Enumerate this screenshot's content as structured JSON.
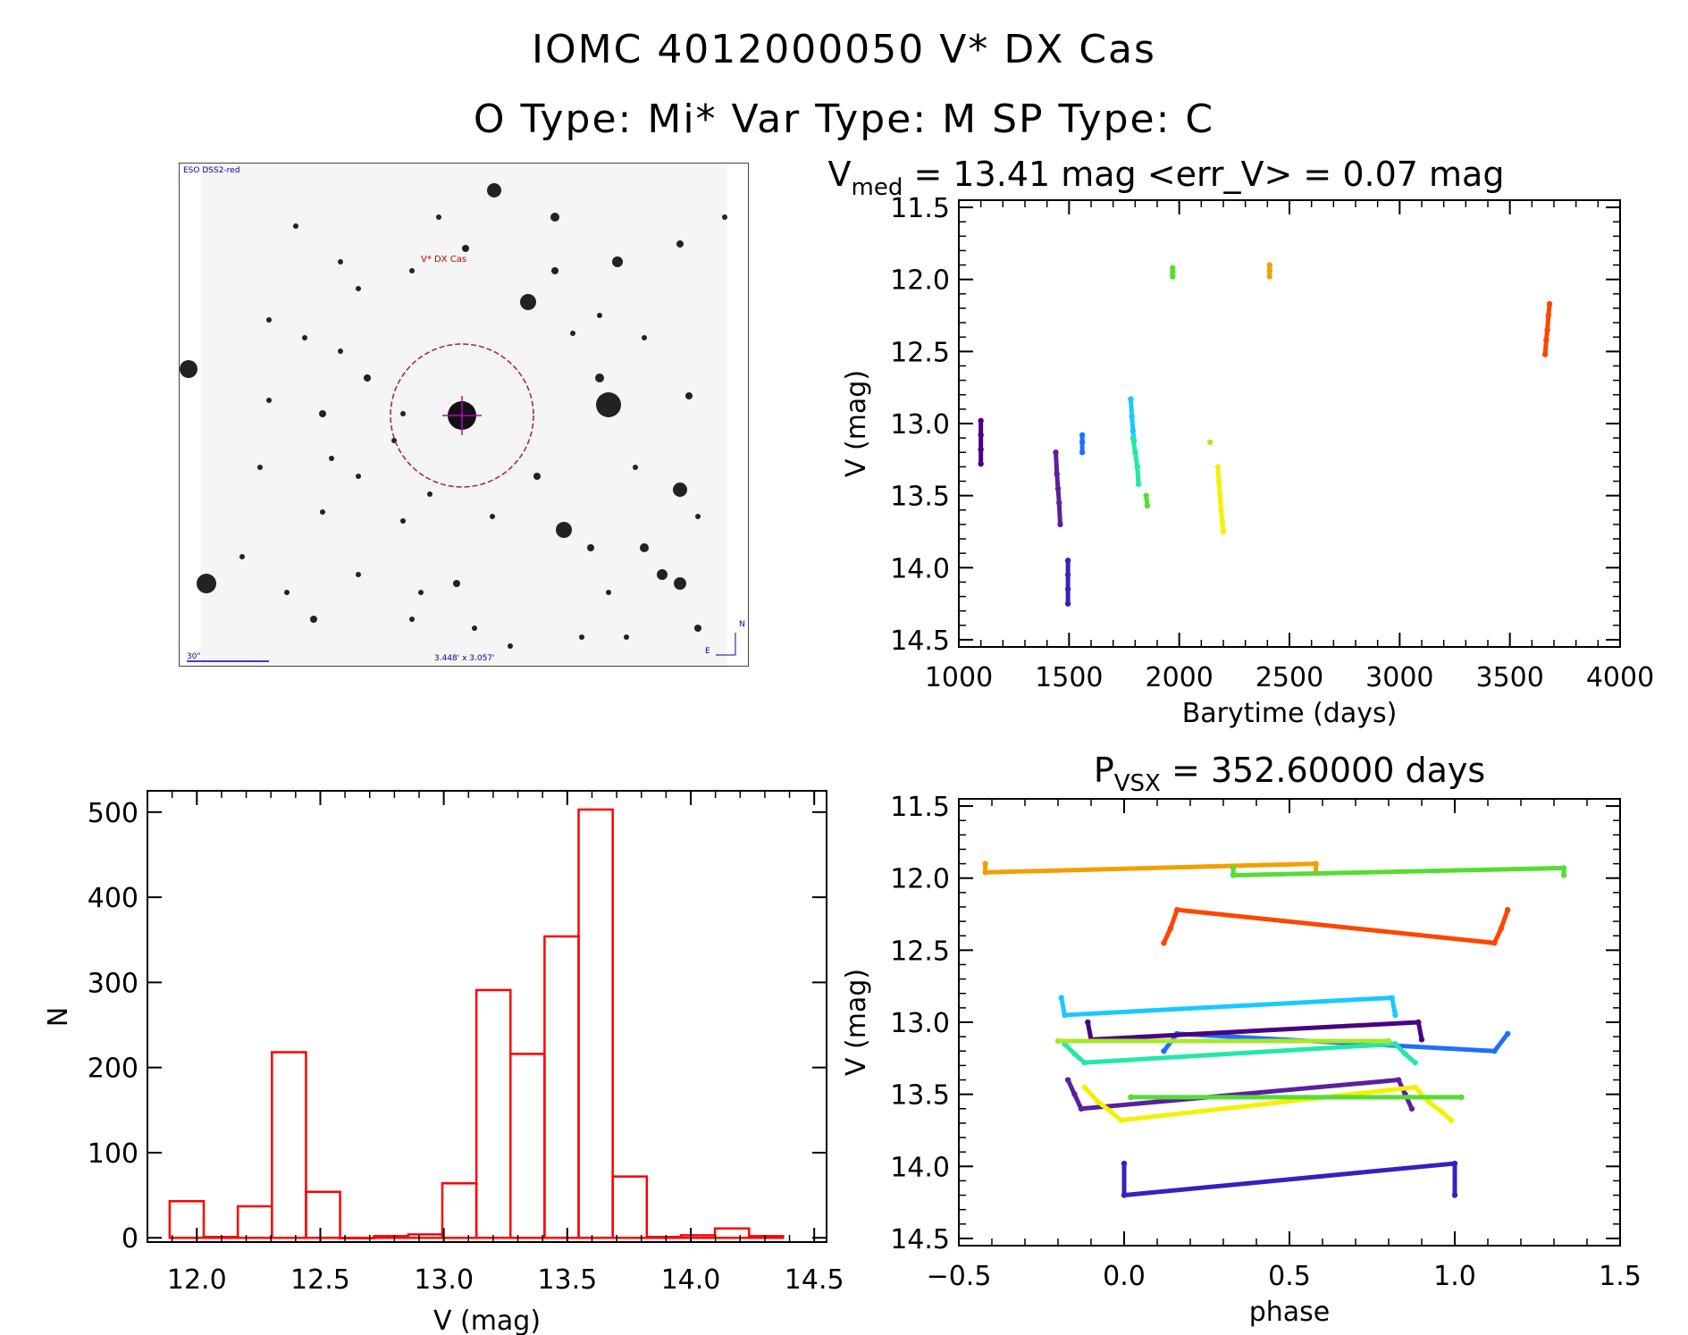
{
  "header": {
    "title_line1": "IOMC 4012000050   V* DX Cas",
    "title_line2": "O Type: Mi*  Var Type: M  SP Type: C"
  },
  "finder_chart": {
    "survey_label": "ESO DSS2-red",
    "target_label": "V* DX Cas",
    "scale_label": "30\"",
    "fov_label": "3.448' x 3.057'",
    "north_label": "N",
    "east_label": "E"
  },
  "chart_data": [
    {
      "type": "scatter",
      "id": "lightcurve",
      "title_prefix": "V",
      "title_sub": "med",
      "title_suffix": " = 13.41 mag <err_V> = 0.07 mag",
      "xlabel": "Barytime (days)",
      "ylabel": "V (mag)",
      "xlim": [
        1000,
        4000
      ],
      "ylim": [
        14.55,
        11.45
      ],
      "xticks": [
        1000,
        1500,
        2000,
        2500,
        3000,
        3500,
        4000
      ],
      "xticklabels": [
        "1000",
        "1500",
        "2000",
        "2500",
        "3000",
        "3500",
        "4000"
      ],
      "yticks": [
        11.5,
        12.0,
        12.5,
        13.0,
        13.5,
        14.0,
        14.5
      ],
      "yticklabels": [
        "11.5",
        "12.0",
        "12.5",
        "13.0",
        "13.5",
        "14.0",
        "14.5"
      ],
      "series": [
        {
          "name": "s1",
          "color": "#4b0082",
          "x": [
            1100,
            1100,
            1100,
            1100
          ],
          "y": [
            12.98,
            13.08,
            13.18,
            13.28
          ]
        },
        {
          "name": "s2",
          "color": "#5b1f9f",
          "x": [
            1440,
            1445,
            1450,
            1455,
            1460
          ],
          "y": [
            13.2,
            13.35,
            13.45,
            13.55,
            13.7
          ]
        },
        {
          "name": "s3",
          "color": "#3a1fbf",
          "x": [
            1495,
            1495,
            1495,
            1495
          ],
          "y": [
            13.95,
            14.05,
            14.15,
            14.25
          ]
        },
        {
          "name": "s4",
          "color": "#1f6fff",
          "x": [
            1560,
            1560,
            1560
          ],
          "y": [
            13.08,
            13.13,
            13.2
          ]
        },
        {
          "name": "s5",
          "color": "#19c9ff",
          "x": [
            1780,
            1785,
            1790,
            1795
          ],
          "y": [
            12.83,
            12.95,
            13.05,
            13.12
          ]
        },
        {
          "name": "s6",
          "color": "#22e8a8",
          "x": [
            1790,
            1800,
            1810,
            1815
          ],
          "y": [
            13.1,
            13.2,
            13.3,
            13.42
          ]
        },
        {
          "name": "s7",
          "color": "#55dd33",
          "x": [
            1850,
            1855
          ],
          "y": [
            13.5,
            13.57
          ]
        },
        {
          "name": "s8",
          "color": "#55dd33",
          "x": [
            1970,
            1970,
            1970
          ],
          "y": [
            11.92,
            11.95,
            11.98
          ]
        },
        {
          "name": "s9",
          "color": "#a8e828",
          "x": [
            2140
          ],
          "y": [
            13.13
          ]
        },
        {
          "name": "s10",
          "color": "#f2f200",
          "x": [
            2175,
            2180,
            2185,
            2190,
            2195,
            2200
          ],
          "y": [
            13.3,
            13.4,
            13.5,
            13.6,
            13.68,
            13.75
          ]
        },
        {
          "name": "s11",
          "color": "#f2a000",
          "x": [
            2410,
            2410,
            2410
          ],
          "y": [
            11.9,
            11.94,
            11.98
          ]
        },
        {
          "name": "s12",
          "color": "#ff4500",
          "x": [
            3660,
            3665,
            3670,
            3675,
            3680
          ],
          "y": [
            12.52,
            12.42,
            12.35,
            12.25,
            12.17
          ]
        }
      ]
    },
    {
      "type": "bar",
      "id": "histogram",
      "xlabel": "V (mag)",
      "ylabel": "N",
      "xlim": [
        11.8,
        14.55
      ],
      "ylim": [
        -5,
        525
      ],
      "xticks": [
        12.0,
        12.5,
        13.0,
        13.5,
        14.0,
        14.5
      ],
      "xticklabels": [
        "12.0",
        "12.5",
        "13.0",
        "13.5",
        "14.0",
        "14.5"
      ],
      "yticks": [
        0,
        100,
        200,
        300,
        400,
        500
      ],
      "yticklabels": [
        "0",
        "100",
        "200",
        "300",
        "400",
        "500"
      ],
      "bin_width": 0.138,
      "bin_starts": [
        11.89,
        12.028,
        12.166,
        12.304,
        12.442,
        12.58,
        12.718,
        12.856,
        12.994,
        13.132,
        13.27,
        13.408,
        13.546,
        13.684,
        13.822,
        13.96,
        14.098,
        14.236
      ],
      "values": [
        43,
        1,
        37,
        218,
        54,
        0,
        2,
        4,
        64,
        291,
        216,
        354,
        503,
        72,
        1,
        3,
        11,
        2
      ],
      "color": "#ff0000"
    },
    {
      "type": "scatter",
      "id": "phased",
      "title_prefix": "P",
      "title_sub": "VSX",
      "title_suffix": " = 352.60000 days",
      "xlabel": "phase",
      "ylabel": "V (mag)",
      "xlim": [
        -0.5,
        1.5
      ],
      "ylim": [
        14.55,
        11.45
      ],
      "xticks": [
        -0.5,
        0.0,
        0.5,
        1.0,
        1.5
      ],
      "xticklabels": [
        "−0.5",
        "0.0",
        "0.5",
        "1.0",
        "1.5"
      ],
      "yticks": [
        11.5,
        12.0,
        12.5,
        13.0,
        13.5,
        14.0,
        14.5
      ],
      "yticklabels": [
        "11.5",
        "12.0",
        "12.5",
        "13.0",
        "13.5",
        "14.0",
        "14.5"
      ],
      "series": [
        {
          "name": "p1",
          "color": "#f2a000",
          "x": [
            -0.42,
            -0.42,
            0.58,
            0.58
          ],
          "y": [
            11.9,
            11.96,
            11.9,
            11.96
          ]
        },
        {
          "name": "p2",
          "color": "#55dd33",
          "x": [
            0.33,
            0.33,
            1.33,
            1.33
          ],
          "y": [
            11.93,
            11.98,
            11.93,
            11.98
          ]
        },
        {
          "name": "p3",
          "color": "#ff4500",
          "x": [
            0.12,
            0.14,
            0.16,
            1.12,
            1.14,
            1.16
          ],
          "y": [
            12.45,
            12.35,
            12.22,
            12.45,
            12.35,
            12.22
          ]
        },
        {
          "name": "p4",
          "color": "#19c9ff",
          "x": [
            -0.19,
            -0.18,
            0.81,
            0.82
          ],
          "y": [
            12.83,
            12.95,
            12.83,
            12.95
          ]
        },
        {
          "name": "p5",
          "color": "#1f6fff",
          "x": [
            0.12,
            0.16,
            1.12,
            1.16
          ],
          "y": [
            13.2,
            13.08,
            13.2,
            13.08
          ]
        },
        {
          "name": "p6",
          "color": "#22e8a8",
          "x": [
            -0.18,
            -0.15,
            -0.12,
            0.82,
            0.85,
            0.88
          ],
          "y": [
            13.15,
            13.22,
            13.28,
            13.15,
            13.22,
            13.28
          ]
        },
        {
          "name": "p7",
          "color": "#4b0082",
          "x": [
            -0.11,
            -0.1,
            0.89,
            0.9
          ],
          "y": [
            13.0,
            13.12,
            13.0,
            13.12
          ]
        },
        {
          "name": "p8",
          "color": "#5b1f9f",
          "x": [
            -0.17,
            -0.15,
            -0.13,
            0.83,
            0.85,
            0.87
          ],
          "y": [
            13.4,
            13.5,
            13.6,
            13.4,
            13.5,
            13.6
          ]
        },
        {
          "name": "p9",
          "color": "#f2f200",
          "x": [
            -0.12,
            -0.08,
            -0.04,
            -0.01,
            0.88,
            0.92,
            0.96,
            0.99
          ],
          "y": [
            13.45,
            13.55,
            13.62,
            13.68,
            13.45,
            13.55,
            13.62,
            13.68
          ]
        },
        {
          "name": "p10",
          "color": "#55dd33",
          "x": [
            0.02,
            1.02
          ],
          "y": [
            13.52,
            13.52
          ]
        },
        {
          "name": "p11",
          "color": "#a8e828",
          "x": [
            -0.2,
            0.8
          ],
          "y": [
            13.13,
            13.13
          ]
        },
        {
          "name": "p12",
          "color": "#3a1fbf",
          "x": [
            0.0,
            0.0,
            1.0,
            1.0
          ],
          "y": [
            13.98,
            14.2,
            13.98,
            14.2
          ]
        }
      ]
    }
  ]
}
